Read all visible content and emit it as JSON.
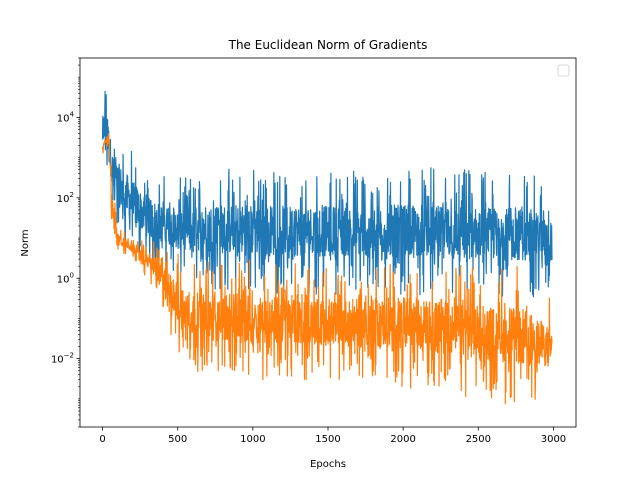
{
  "chart_data": {
    "type": "line",
    "title": "The Euclidean Norm of Gradients",
    "xlabel": "Epochs",
    "ylabel": "Norm",
    "xlim": [
      -150,
      3150
    ],
    "ylim": [
      0.0002,
      300000
    ],
    "yscale": "log",
    "xticks": [
      0,
      500,
      1000,
      1500,
      2000,
      2500,
      3000
    ],
    "xtick_labels": [
      "0",
      "500",
      "1000",
      "1500",
      "2000",
      "2500",
      "3000"
    ],
    "yticks": [
      {
        "value": 0.01,
        "base": "10",
        "exp": "−2"
      },
      {
        "value": 1,
        "base": "10",
        "exp": "0"
      },
      {
        "value": 100,
        "base": "10",
        "exp": "2"
      },
      {
        "value": 10000,
        "base": "10",
        "exp": "4"
      }
    ],
    "legend": {
      "position": "top-right",
      "entries": []
    },
    "grid": false,
    "series": [
      {
        "color": "#1f77b4",
        "envelope": [
          {
            "x": 0,
            "low": 400,
            "high": 40000
          },
          {
            "x": 15,
            "low": 700,
            "high": 70000
          },
          {
            "x": 40,
            "low": 200,
            "high": 30000
          },
          {
            "x": 70,
            "low": 20,
            "high": 6000
          },
          {
            "x": 150,
            "low": 5,
            "high": 3000
          },
          {
            "x": 300,
            "low": 2,
            "high": 500
          },
          {
            "x": 500,
            "low": 1,
            "high": 300
          },
          {
            "x": 750,
            "low": 0.5,
            "high": 600
          },
          {
            "x": 1000,
            "low": 0.4,
            "high": 600
          },
          {
            "x": 1500,
            "low": 0.4,
            "high": 550
          },
          {
            "x": 2000,
            "low": 0.4,
            "high": 600
          },
          {
            "x": 2500,
            "low": 0.3,
            "high": 550
          },
          {
            "x": 2800,
            "low": 0.3,
            "high": 500
          },
          {
            "x": 2990,
            "low": 0.4,
            "high": 200
          }
        ]
      },
      {
        "color": "#ff7f0e",
        "envelope": [
          {
            "x": 0,
            "low": 1000,
            "high": 2500
          },
          {
            "x": 25,
            "low": 2000,
            "high": 4500
          },
          {
            "x": 45,
            "low": 1500,
            "high": 4000
          },
          {
            "x": 60,
            "low": 8,
            "high": 500
          },
          {
            "x": 100,
            "low": 5,
            "high": 20
          },
          {
            "x": 200,
            "low": 3,
            "high": 10
          },
          {
            "x": 350,
            "low": 0.5,
            "high": 8
          },
          {
            "x": 500,
            "low": 0.01,
            "high": 5
          },
          {
            "x": 600,
            "low": 0.005,
            "high": 3
          },
          {
            "x": 1000,
            "low": 0.003,
            "high": 3
          },
          {
            "x": 1500,
            "low": 0.003,
            "high": 2
          },
          {
            "x": 2000,
            "low": 0.002,
            "high": 3
          },
          {
            "x": 2500,
            "low": 0.001,
            "high": 2
          },
          {
            "x": 2800,
            "low": 0.0006,
            "high": 2
          },
          {
            "x": 2990,
            "low": 0.001,
            "high": 0.3
          }
        ]
      }
    ]
  }
}
